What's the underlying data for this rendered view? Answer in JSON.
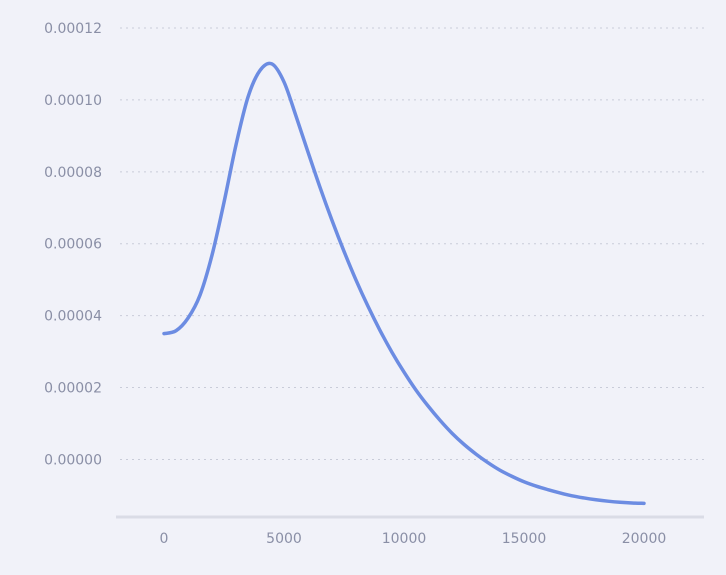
{
  "chart_data": {
    "type": "line",
    "title": "",
    "xlabel": "",
    "ylabel": "",
    "xlim": [
      -2000,
      22500
    ],
    "ylim": [
      -1.6e-05,
      0.00012
    ],
    "grid": true,
    "legend": "none",
    "x_ticks": [
      "0",
      "5000",
      "10000",
      "15000",
      "20000"
    ],
    "y_ticks": [
      "0.00012",
      "0.00010",
      "0.00008",
      "0.00006",
      "0.00004",
      "0.00002",
      "0.00000"
    ],
    "series": [
      {
        "color": "#6c8ce2",
        "x": [
          0,
          500,
          1000,
          1500,
          2000,
          2500,
          3000,
          3500,
          4000,
          4500,
          5000,
          5500,
          6000,
          6500,
          7000,
          7500,
          8000,
          8500,
          9000,
          9500,
          10000,
          10500,
          11000,
          11500,
          12000,
          12500,
          13000,
          13500,
          14000,
          14500,
          15000,
          15500,
          16000,
          16500,
          17000,
          17500,
          18000,
          18500,
          19000,
          19500,
          20000
        ],
        "y": [
          3.5e-05,
          3.58e-05,
          3.93e-05,
          4.57e-05,
          5.68e-05,
          7.15e-05,
          8.75e-05,
          0.0001008,
          0.0001082,
          0.00011,
          0.000105,
          9.55e-05,
          8.55e-05,
          7.57e-05,
          6.65e-05,
          5.79e-05,
          4.99e-05,
          4.26e-05,
          3.59e-05,
          2.98e-05,
          2.43e-05,
          1.93e-05,
          1.49e-05,
          1.09e-05,
          7.3e-06,
          4.2e-06,
          1.5e-06,
          -9e-07,
          -3e-06,
          -4.7e-06,
          -6.2e-06,
          -7.4e-06,
          -8.4e-06,
          -9.3e-06,
          -1.01e-05,
          -1.07e-05,
          -1.12e-05,
          -1.16e-05,
          -1.19e-05,
          -1.21e-05,
          -1.22e-05
        ]
      }
    ]
  },
  "colors": {
    "background": "#f1f2f9",
    "grid": "#c9ccd9",
    "axis": "#dadce6",
    "line": "#6c8ce2",
    "tick_text": "#8a8fa6"
  }
}
